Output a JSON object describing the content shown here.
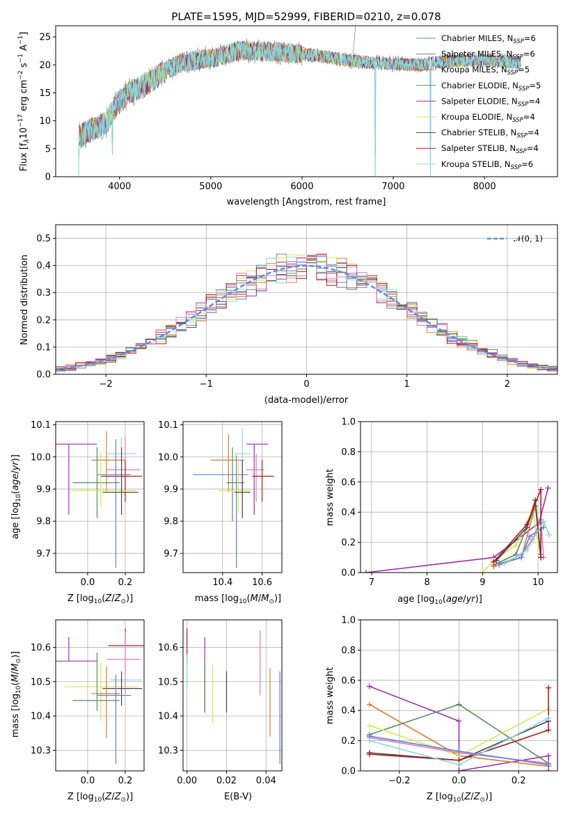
{
  "colors": {
    "chabrier_miles": "#5b7fd6",
    "salpeter_miles": "#7f7f7f",
    "kroupa_miles": "#e07b2a",
    "chabrier_elodie": "#5a8a5e",
    "salpeter_elodie": "#9b2fae",
    "kroupa_elodie": "#d9e84a",
    "chabrier_stelib": "#444444",
    "salpeter_stelib": "#b0191e",
    "kroupa_stelib": "#84d8dd",
    "pink": "#e377c2",
    "normal": "#5b8fd6"
  },
  "chart_data": [
    {
      "id": "spectrum",
      "type": "line",
      "title": "PLATE=1595, MJD=52999, FIBERID=0210, z=0.078",
      "xlabel": "wavelength [Angstrom, rest frame]",
      "ylabel": "Flux [fλ10⁻¹⁷ erg cm⁻² s⁻¹ A⁻¹]",
      "xlim": [
        3300,
        8800
      ],
      "ylim": [
        0,
        27
      ],
      "xticks": [
        "4000",
        "5000",
        "6000",
        "7000",
        "8000"
      ],
      "yticks": [
        "0",
        "5",
        "10",
        "15",
        "20",
        "25"
      ],
      "grid": false,
      "legend_position": "top-right",
      "legend": [
        {
          "main": "Chabrier MILES, N",
          "sub": "SSP",
          "tail": "=6",
          "color_key": "chabrier_miles"
        },
        {
          "main": "Salpeter MILES, N",
          "sub": "SSP",
          "tail": "=6",
          "color_key": "salpeter_miles"
        },
        {
          "main": "Kroupa MILES, N",
          "sub": "SSP",
          "tail": "=5",
          "color_key": "kroupa_miles"
        },
        {
          "main": "Chabrier ELODIE, N",
          "sub": "SSP",
          "tail": "=5",
          "color_key": "chabrier_elodie"
        },
        {
          "main": "Salpeter ELODIE, N",
          "sub": "SSP",
          "tail": "=4",
          "color_key": "salpeter_elodie"
        },
        {
          "main": "Kroupa ELODIE, N",
          "sub": "SSP",
          "tail": "=4",
          "color_key": "kroupa_elodie"
        },
        {
          "main": "Chabrier STELIB, N",
          "sub": "SSP",
          "tail": "=4",
          "color_key": "chabrier_stelib"
        },
        {
          "main": "Salpeter STELIB, N",
          "sub": "SSP",
          "tail": "=4",
          "color_key": "salpeter_stelib"
        },
        {
          "main": "Kroupa STELIB, N",
          "sub": "SSP",
          "tail": "=6",
          "color_key": "kroupa_stelib"
        }
      ],
      "continuum": [
        [
          3550,
          7
        ],
        [
          3700,
          8.5
        ],
        [
          3850,
          9.5
        ],
        [
          3950,
          12.5
        ],
        [
          4100,
          15
        ],
        [
          4300,
          16.5
        ],
        [
          4500,
          19
        ],
        [
          4700,
          20.5
        ],
        [
          4900,
          21
        ],
        [
          5100,
          21.5
        ],
        [
          5300,
          22.5
        ],
        [
          5500,
          22.5
        ],
        [
          5800,
          22.2
        ],
        [
          6100,
          21.8
        ],
        [
          6400,
          21
        ],
        [
          6700,
          20.5
        ],
        [
          7000,
          20.2
        ],
        [
          7300,
          20
        ],
        [
          7500,
          20.5
        ],
        [
          7800,
          20.8
        ],
        [
          8100,
          20.8
        ],
        [
          8400,
          20.5
        ]
      ],
      "notches": [
        [
          3550,
          0.3
        ],
        [
          3920,
          4
        ],
        [
          6800,
          0
        ],
        [
          7410,
          0
        ]
      ]
    },
    {
      "id": "residuals",
      "type": "bar",
      "xlabel": "(data-model)/error",
      "ylabel": "Normed distribution",
      "xlim": [
        -2.5,
        2.5
      ],
      "ylim": [
        0,
        0.55
      ],
      "xticks": [
        "−2",
        "−1",
        "0",
        "1",
        "2"
      ],
      "yticks": [
        "0.0",
        "0.1",
        "0.2",
        "0.3",
        "0.4",
        "0.5"
      ],
      "grid": true,
      "legend_position": "top-right",
      "legend_label": "𝒩(0, 1)",
      "bin_width": 0.1
    },
    {
      "id": "age_vs_z",
      "type": "scatter",
      "xlabel": "Z [log₁₀(Z/Z⊙)]",
      "ylabel": "age  [log₁₀(age/yr)]",
      "xlim": [
        -0.17,
        0.3
      ],
      "ylim": [
        9.64,
        10.11
      ],
      "xticks": [
        "0.0",
        "0.2"
      ],
      "yticks": [
        "9.7",
        "9.8",
        "9.9",
        "10.0",
        "10.1"
      ],
      "grid": true,
      "points": [
        {
          "color_key": "salpeter_elodie",
          "x": -0.1,
          "y": 10.04,
          "xerr": [
            0.15,
            0.15
          ],
          "yerr": [
            0.22,
            0.0
          ]
        },
        {
          "color_key": "kroupa_miles",
          "x": 0.1,
          "y": 9.99,
          "xerr": [
            0.08,
            0.1
          ],
          "yerr": [
            0.1,
            0.09
          ]
        },
        {
          "color_key": "kroupa_stelib",
          "x": 0.18,
          "y": 10.01,
          "xerr": [
            0.08,
            0.08
          ],
          "yerr": [
            0.1,
            0.05
          ]
        },
        {
          "color_key": "pink",
          "x": 0.2,
          "y": 9.96,
          "xerr": [
            0.1,
            0.08
          ],
          "yerr": [
            0.1,
            0.1
          ]
        },
        {
          "color_key": "salpeter_stelib",
          "x": 0.2,
          "y": 9.94,
          "xerr": [
            0.13,
            0.09
          ],
          "yerr": [
            0.08,
            0.05
          ]
        },
        {
          "color_key": "chabrier_miles",
          "x": 0.15,
          "y": 9.945,
          "xerr": [
            0.1,
            0.08
          ],
          "yerr": [
            0.29,
            0.11
          ]
        },
        {
          "color_key": "chabrier_elodie",
          "x": 0.05,
          "y": 9.92,
          "xerr": [
            0.13,
            0.12
          ],
          "yerr": [
            0.11,
            0.11
          ]
        },
        {
          "color_key": "kroupa_elodie",
          "x": 0.07,
          "y": 9.895,
          "xerr": [
            0.16,
            0.19
          ],
          "yerr": [
            0.05,
            0.12
          ]
        },
        {
          "color_key": "chabrier_stelib",
          "x": 0.18,
          "y": 9.89,
          "xerr": [
            0.1,
            0.09
          ],
          "yerr": [
            0.07,
            0.14
          ]
        }
      ]
    },
    {
      "id": "age_vs_mass",
      "type": "scatter",
      "xlabel": "mass [log₁₀(M/M⊙)]",
      "ylabel": "",
      "xlim": [
        10.2,
        10.7
      ],
      "ylim": [
        9.64,
        10.11
      ],
      "xticks": [
        "10.4",
        "10.6"
      ],
      "yticks": [
        "9.7",
        "9.8",
        "9.9",
        "10.0",
        "10.1"
      ],
      "grid": true,
      "points": [
        {
          "color_key": "salpeter_elodie",
          "x": 10.56,
          "y": 10.04,
          "xerr": [
            0.04,
            0.07
          ],
          "yerr": [
            0.22,
            0.0
          ]
        },
        {
          "color_key": "kroupa_miles",
          "x": 10.43,
          "y": 9.99,
          "xerr": [
            0.09,
            0.08
          ],
          "yerr": [
            0.1,
            0.08
          ]
        },
        {
          "color_key": "kroupa_stelib",
          "x": 10.5,
          "y": 10.01,
          "xerr": [
            0.04,
            0.04
          ],
          "yerr": [
            0.08,
            0.08
          ]
        },
        {
          "color_key": "pink",
          "x": 10.57,
          "y": 9.96,
          "xerr": [
            0.05,
            0.04
          ],
          "yerr": [
            0.1,
            0.05
          ]
        },
        {
          "color_key": "salpeter_stelib",
          "x": 10.6,
          "y": 9.94,
          "xerr": [
            0.05,
            0.06
          ],
          "yerr": [
            0.08,
            0.05
          ]
        },
        {
          "color_key": "chabrier_miles",
          "x": 10.47,
          "y": 9.945,
          "xerr": [
            0.22,
            0.06
          ],
          "yerr": [
            0.29,
            0.06
          ]
        },
        {
          "color_key": "chabrier_elodie",
          "x": 10.45,
          "y": 9.92,
          "xerr": [
            0.03,
            0.06
          ],
          "yerr": [
            0.12,
            0.11
          ]
        },
        {
          "color_key": "kroupa_elodie",
          "x": 10.48,
          "y": 9.895,
          "xerr": [
            0.1,
            0.07
          ],
          "yerr": [
            0.07,
            0.1
          ]
        },
        {
          "color_key": "chabrier_stelib",
          "x": 10.5,
          "y": 9.89,
          "xerr": [
            0.04,
            0.04
          ],
          "yerr": [
            0.08,
            0.1
          ]
        }
      ]
    },
    {
      "id": "weight_vs_age",
      "type": "line",
      "xlabel": "age  [log₁₀(age/yr)]",
      "ylabel": "mass weight",
      "xlim": [
        6.8,
        10.35
      ],
      "ylim": [
        0,
        1.0
      ],
      "xticks": [
        "7",
        "8",
        "9",
        "10"
      ],
      "yticks": [
        "0.0",
        "0.2",
        "0.4",
        "0.6",
        "0.8",
        "1.0"
      ],
      "grid": true,
      "series": [
        {
          "color_key": "salpeter_elodie",
          "x": [
            6.9,
            9.2,
            10.02,
            10.18
          ],
          "y": [
            0.0,
            0.1,
            0.33,
            0.56
          ]
        },
        {
          "color_key": "kroupa_elodie",
          "x": [
            9.0,
            9.2,
            9.6,
            9.9,
            10.05
          ],
          "y": [
            0.0,
            0.08,
            0.18,
            0.41,
            0.1
          ]
        },
        {
          "color_key": "chabrier_elodie",
          "x": [
            9.2,
            9.6,
            9.95,
            10.05
          ],
          "y": [
            0.05,
            0.12,
            0.44,
            0.12
          ]
        },
        {
          "color_key": "kroupa_miles",
          "x": [
            9.2,
            9.7,
            9.95,
            10.05
          ],
          "y": [
            0.04,
            0.1,
            0.44,
            0.1
          ]
        },
        {
          "color_key": "pink",
          "x": [
            9.3,
            9.7,
            9.9,
            10.05,
            10.1
          ],
          "y": [
            0.05,
            0.12,
            0.22,
            0.35,
            0.1
          ]
        },
        {
          "color_key": "chabrier_miles",
          "x": [
            9.3,
            9.7,
            9.85,
            10.1
          ],
          "y": [
            0.06,
            0.1,
            0.24,
            0.3
          ]
        },
        {
          "color_key": "chabrier_stelib",
          "x": [
            9.25,
            9.8,
            9.95,
            10.05
          ],
          "y": [
            0.08,
            0.3,
            0.48,
            0.1
          ]
        },
        {
          "color_key": "salpeter_stelib",
          "x": [
            9.2,
            9.8,
            10.05,
            10.05
          ],
          "y": [
            0.07,
            0.32,
            0.55,
            0.1
          ]
        },
        {
          "color_key": "kroupa_stelib",
          "x": [
            9.4,
            9.8,
            10.1,
            10.2
          ],
          "y": [
            0.06,
            0.15,
            0.34,
            0.25
          ]
        }
      ]
    },
    {
      "id": "mass_vs_z",
      "type": "scatter",
      "xlabel": "Z [log₁₀(Z/Z⊙)]",
      "ylabel": "mass [log₁₀(M/M⊙)]",
      "xlim": [
        -0.17,
        0.3
      ],
      "ylim": [
        10.24,
        10.68
      ],
      "xticks": [
        "0.0",
        "0.2"
      ],
      "yticks": [
        "10.3",
        "10.4",
        "10.5",
        "10.6"
      ],
      "grid": true,
      "points": [
        {
          "color_key": "salpeter_stelib",
          "x": 0.2,
          "y": 10.605,
          "xerr": [
            0.09,
            0.1
          ],
          "yerr": [
            0.0,
            0.05
          ]
        },
        {
          "color_key": "pink",
          "x": 0.2,
          "y": 10.565,
          "xerr": [
            0.1,
            0.08
          ],
          "yerr": [
            0.1,
            0.08
          ]
        },
        {
          "color_key": "salpeter_elodie",
          "x": -0.1,
          "y": 10.56,
          "xerr": [
            0.15,
            0.15
          ],
          "yerr": [
            0.0,
            0.07
          ]
        },
        {
          "color_key": "kroupa_stelib",
          "x": 0.2,
          "y": 10.505,
          "xerr": [
            0.08,
            0.09
          ],
          "yerr": [
            0.0,
            0.0
          ]
        },
        {
          "color_key": "kroupa_elodie",
          "x": 0.07,
          "y": 10.485,
          "xerr": [
            0.19,
            0.2
          ],
          "yerr": [
            0.1,
            0.07
          ]
        },
        {
          "color_key": "chabrier_stelib",
          "x": 0.18,
          "y": 10.48,
          "xerr": [
            0.1,
            0.11
          ],
          "yerr": [
            0.05,
            0.05
          ]
        },
        {
          "color_key": "kroupa_miles",
          "x": 0.1,
          "y": 10.465,
          "xerr": [
            0.08,
            0.07
          ],
          "yerr": [
            0.13,
            0.08
          ]
        },
        {
          "color_key": "chabrier_miles",
          "x": 0.15,
          "y": 10.46,
          "xerr": [
            0.1,
            0.08
          ],
          "yerr": [
            0.2,
            0.06
          ]
        },
        {
          "color_key": "chabrier_elodie",
          "x": 0.05,
          "y": 10.445,
          "xerr": [
            0.13,
            0.12
          ],
          "yerr": [
            0.03,
            0.14
          ]
        }
      ]
    },
    {
      "id": "mass_vs_ebv",
      "type": "scatter",
      "xlabel": "E(B-V)",
      "ylabel": "",
      "xlim": [
        -0.002,
        0.048
      ],
      "ylim": [
        10.24,
        10.68
      ],
      "xticks": [
        "0.00",
        "0.02",
        "0.04"
      ],
      "yticks": [
        "10.3",
        "10.4",
        "10.5",
        "10.6"
      ],
      "grid": true,
      "points": [
        {
          "color_key": "salpeter_stelib",
          "x": 0.0,
          "y": 10.605,
          "xerr": [
            0,
            0
          ],
          "yerr": [
            0.05,
            0.05
          ]
        },
        {
          "color_key": "kroupa_stelib",
          "x": 0.0,
          "y": 10.53,
          "xerr": [
            0,
            0
          ],
          "yerr": [
            0.05,
            0.05
          ]
        },
        {
          "color_key": "salpeter_elodie",
          "x": 0.009,
          "y": 10.56,
          "xerr": [
            0,
            0
          ],
          "yerr": [
            0.15,
            0.07
          ]
        },
        {
          "color_key": "chabrier_elodie",
          "x": 0.009,
          "y": 10.56,
          "xerr": [
            0,
            0
          ],
          "yerr": [
            0.15,
            0.0
          ]
        },
        {
          "color_key": "kroupa_elodie",
          "x": 0.013,
          "y": 10.48,
          "xerr": [
            0,
            0
          ],
          "yerr": [
            0.1,
            0.07
          ]
        },
        {
          "color_key": "chabrier_stelib",
          "x": 0.02,
          "y": 10.48,
          "xerr": [
            0,
            0
          ],
          "yerr": [
            0.07,
            0.05
          ]
        },
        {
          "color_key": "pink",
          "x": 0.037,
          "y": 10.56,
          "xerr": [
            0,
            0
          ],
          "yerr": [
            0.1,
            0.09
          ]
        },
        {
          "color_key": "kroupa_miles",
          "x": 0.042,
          "y": 10.45,
          "xerr": [
            0,
            0
          ],
          "yerr": [
            0.11,
            0.09
          ]
        },
        {
          "color_key": "chabrier_miles",
          "x": 0.047,
          "y": 10.4,
          "xerr": [
            0,
            0
          ],
          "yerr": [
            0.14,
            0.13
          ]
        }
      ]
    },
    {
      "id": "weight_vs_z",
      "type": "line",
      "xlabel": "Z [log₁₀(Z/Z⊙)]",
      "ylabel": "mass weight",
      "xlim": [
        -0.33,
        0.33
      ],
      "ylim": [
        0,
        1.0
      ],
      "xticks": [
        "−0.2",
        "0.0",
        "0.2"
      ],
      "yticks": [
        "0.0",
        "0.2",
        "0.4",
        "0.6",
        "0.8",
        "1.0"
      ],
      "grid": true,
      "series": [
        {
          "color_key": "salpeter_elodie",
          "x": [
            -0.3,
            0.0,
            0.0,
            0.3,
            0.3
          ],
          "y": [
            0.56,
            0.33,
            0.0,
            0.1,
            0.0
          ]
        },
        {
          "color_key": "kroupa_miles",
          "x": [
            -0.3,
            0.0,
            0.3
          ],
          "y": [
            0.44,
            0.1,
            0.03
          ]
        },
        {
          "color_key": "chabrier_elodie",
          "x": [
            -0.3,
            0.0,
            0.3
          ],
          "y": [
            0.24,
            0.44,
            0.05
          ]
        },
        {
          "color_key": "kroupa_elodie",
          "x": [
            -0.3,
            0.0,
            0.3
          ],
          "y": [
            0.3,
            0.1,
            0.41
          ]
        },
        {
          "color_key": "chabrier_stelib",
          "x": [
            -0.3,
            0.0,
            0.3
          ],
          "y": [
            0.12,
            0.07,
            0.33
          ]
        },
        {
          "color_key": "salpeter_stelib",
          "x": [
            -0.3,
            0.0,
            0.3,
            0.3
          ],
          "y": [
            0.11,
            0.07,
            0.27,
            0.55
          ]
        },
        {
          "color_key": "pink",
          "x": [
            -0.3,
            0.0,
            0.3
          ],
          "y": [
            0.22,
            0.12,
            0.05
          ]
        },
        {
          "color_key": "chabrier_miles",
          "x": [
            -0.3,
            0.0,
            0.3
          ],
          "y": [
            0.23,
            0.13,
            0.04
          ]
        },
        {
          "color_key": "kroupa_stelib",
          "x": [
            -0.3,
            0.0,
            0.3
          ],
          "y": [
            0.2,
            0.04,
            0.35
          ]
        }
      ]
    }
  ]
}
